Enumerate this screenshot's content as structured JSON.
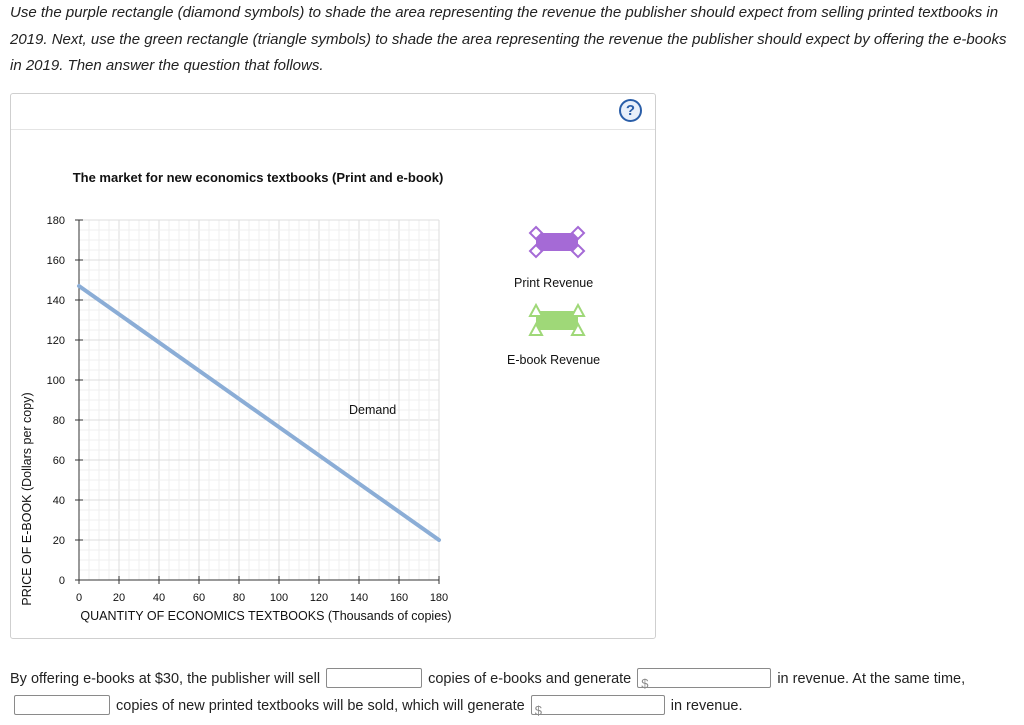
{
  "instructions": "Use the purple rectangle (diamond symbols) to shade the area representing the revenue the publisher should expect from selling printed textbooks in 2019. Next, use the green rectangle (triangle symbols) to shade the area representing the revenue the publisher should expect by offering the e-books in 2019. Then answer the question that follows.",
  "help": {
    "glyph": "?"
  },
  "chart_data": {
    "type": "line",
    "title": "The market for new economics textbooks (Print and e-book)",
    "xlabel": "QUANTITY OF ECONOMICS TEXTBOOKS (Thousands of copies)",
    "ylabel": "PRICE OF E-BOOK (Dollars per copy)",
    "xlim": [
      0,
      180
    ],
    "ylim": [
      0,
      180
    ],
    "x_ticks": [
      0,
      20,
      40,
      60,
      80,
      100,
      120,
      140,
      160,
      180
    ],
    "y_ticks": [
      0,
      20,
      40,
      60,
      80,
      100,
      120,
      140,
      160,
      180
    ],
    "grid": true,
    "series": [
      {
        "name": "Demand",
        "color": "#8badd6",
        "x": [
          0,
          180
        ],
        "y": [
          147,
          20
        ]
      }
    ]
  },
  "legend": {
    "print_label": "Print Revenue",
    "ebook_label": "E-book Revenue",
    "print_color": "#a56ad6",
    "ebook_color": "#9fd878"
  },
  "answer": {
    "t1": "By offering e-books at $30, the publisher will sell",
    "t2": "copies of e-books and generate",
    "t3": "in revenue. At the same time,",
    "t4": "copies of new printed textbooks will be sold, which will generate",
    "t5": "in revenue.",
    "currency": "$",
    "ebook_copies": "",
    "ebook_revenue": "",
    "print_copies": "",
    "print_revenue": ""
  }
}
